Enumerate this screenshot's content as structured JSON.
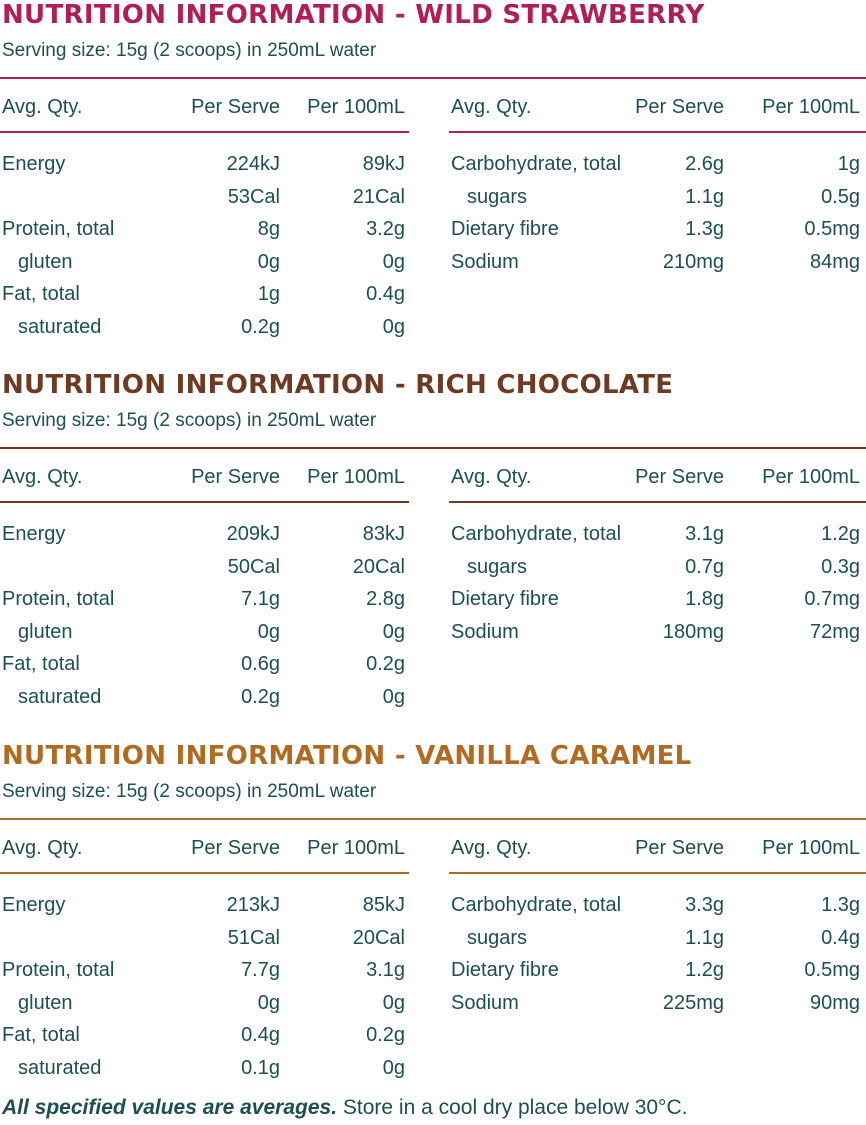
{
  "colors": {
    "text": "#1d4f52",
    "strawberry": "#b01e57",
    "chocolate": "#6e3a22",
    "caramel": "#b06a22"
  },
  "sections": [
    {
      "title": "NUTRITION INFORMATION - WILD STRAWBERRY",
      "serving": "Serving size: 15g (2 scoops) in 250mL water",
      "headers": [
        "Avg. Qty.",
        "Per Serve",
        "Per 100mL"
      ],
      "left_rows": [
        {
          "label": "Energy",
          "serve": "224kJ",
          "per100": "89kJ",
          "indent": false
        },
        {
          "label": "",
          "serve": "53Cal",
          "per100": "21Cal",
          "indent": false
        },
        {
          "label": "Protein, total",
          "serve": "8g",
          "per100": "3.2g",
          "indent": false
        },
        {
          "label": "gluten",
          "serve": "0g",
          "per100": "0g",
          "indent": true
        },
        {
          "label": "Fat, total",
          "serve": "1g",
          "per100": "0.4g",
          "indent": false
        },
        {
          "label": "saturated",
          "serve": "0.2g",
          "per100": "0g",
          "indent": true
        }
      ],
      "right_rows": [
        {
          "label": "Carbohydrate, total",
          "serve": "2.6g",
          "per100": "1g",
          "indent": false
        },
        {
          "label": "sugars",
          "serve": "1.1g",
          "per100": "0.5g",
          "indent": true
        },
        {
          "label": "Dietary fibre",
          "serve": "1.3g",
          "per100": "0.5mg",
          "indent": false
        },
        {
          "label": "Sodium",
          "serve": "210mg",
          "per100": "84mg",
          "indent": false
        }
      ]
    },
    {
      "title": "NUTRITION INFORMATION - RICH CHOCOLATE",
      "serving": "Serving size: 15g (2 scoops) in 250mL water",
      "headers": [
        "Avg. Qty.",
        "Per Serve",
        "Per 100mL"
      ],
      "left_rows": [
        {
          "label": "Energy",
          "serve": "209kJ",
          "per100": "83kJ",
          "indent": false
        },
        {
          "label": "",
          "serve": "50Cal",
          "per100": "20Cal",
          "indent": false
        },
        {
          "label": "Protein, total",
          "serve": "7.1g",
          "per100": "2.8g",
          "indent": false
        },
        {
          "label": "gluten",
          "serve": "0g",
          "per100": "0g",
          "indent": true
        },
        {
          "label": "Fat, total",
          "serve": "0.6g",
          "per100": "0.2g",
          "indent": false
        },
        {
          "label": "saturated",
          "serve": "0.2g",
          "per100": "0g",
          "indent": true
        }
      ],
      "right_rows": [
        {
          "label": "Carbohydrate, total",
          "serve": "3.1g",
          "per100": "1.2g",
          "indent": false
        },
        {
          "label": "sugars",
          "serve": "0.7g",
          "per100": "0.3g",
          "indent": true
        },
        {
          "label": "Dietary fibre",
          "serve": "1.8g",
          "per100": "0.7mg",
          "indent": false
        },
        {
          "label": "Sodium",
          "serve": "180mg",
          "per100": "72mg",
          "indent": false
        }
      ]
    },
    {
      "title": "NUTRITION INFORMATION - VANILLA CARAMEL",
      "serving": "Serving size: 15g (2 scoops) in 250mL water",
      "headers": [
        "Avg. Qty.",
        "Per Serve",
        "Per 100mL"
      ],
      "left_rows": [
        {
          "label": "Energy",
          "serve": "213kJ",
          "per100": "85kJ",
          "indent": false
        },
        {
          "label": "",
          "serve": "51Cal",
          "per100": "20Cal",
          "indent": false
        },
        {
          "label": "Protein, total",
          "serve": "7.7g",
          "per100": "3.1g",
          "indent": false
        },
        {
          "label": "gluten",
          "serve": "0g",
          "per100": "0g",
          "indent": true
        },
        {
          "label": "Fat, total",
          "serve": "0.4g",
          "per100": "0.2g",
          "indent": false
        },
        {
          "label": "saturated",
          "serve": "0.1g",
          "per100": "0g",
          "indent": true
        }
      ],
      "right_rows": [
        {
          "label": "Carbohydrate, total",
          "serve": "3.3g",
          "per100": "1.3g",
          "indent": false
        },
        {
          "label": "sugars",
          "serve": "1.1g",
          "per100": "0.4g",
          "indent": true
        },
        {
          "label": "Dietary fibre",
          "serve": "1.2g",
          "per100": "0.5mg",
          "indent": false
        },
        {
          "label": "Sodium",
          "serve": "225mg",
          "per100": "90mg",
          "indent": false
        }
      ]
    }
  ],
  "footer": {
    "emphasis": "All specified values are averages.",
    "note": "Store in a cool dry place below 30°C."
  }
}
